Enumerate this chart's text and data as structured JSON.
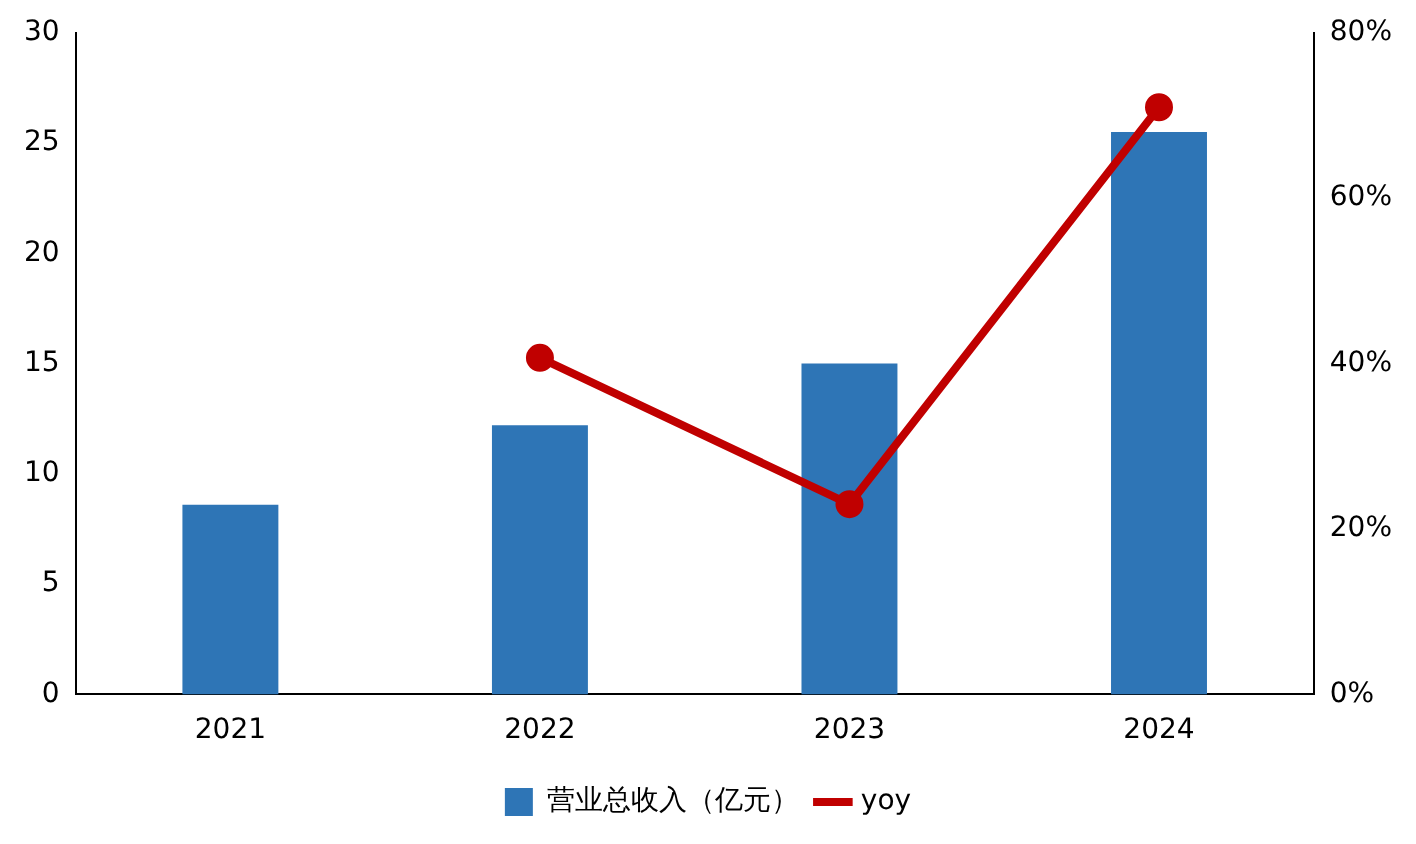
{
  "chart_data": {
    "type": "bar",
    "categories": [
      "2021",
      "2022",
      "2023",
      "2024"
    ],
    "series": [
      {
        "name": "营业总收入（亿元）",
        "color": "#2e75b6",
        "values": [
          8.6,
          12.2,
          15.0,
          25.5
        ]
      },
      {
        "name": "yoy",
        "type": "line",
        "axis": "y2",
        "color": "#c00000",
        "values": [
          null,
          40.7,
          23.0,
          71.0
        ]
      }
    ],
    "ylim": [
      0,
      30
    ],
    "yticks": [
      0,
      5,
      10,
      15,
      20,
      25,
      30
    ],
    "y2lim": [
      0,
      80
    ],
    "y2ticks": [
      {
        "value": 0,
        "label": "0%"
      },
      {
        "value": 20,
        "label": "20%"
      },
      {
        "value": 40,
        "label": "40%"
      },
      {
        "value": 60,
        "label": "60%"
      },
      {
        "value": 80,
        "label": "80%"
      }
    ],
    "grid": false,
    "legend": "bottom",
    "marker": "circle",
    "line_style": "solid"
  }
}
